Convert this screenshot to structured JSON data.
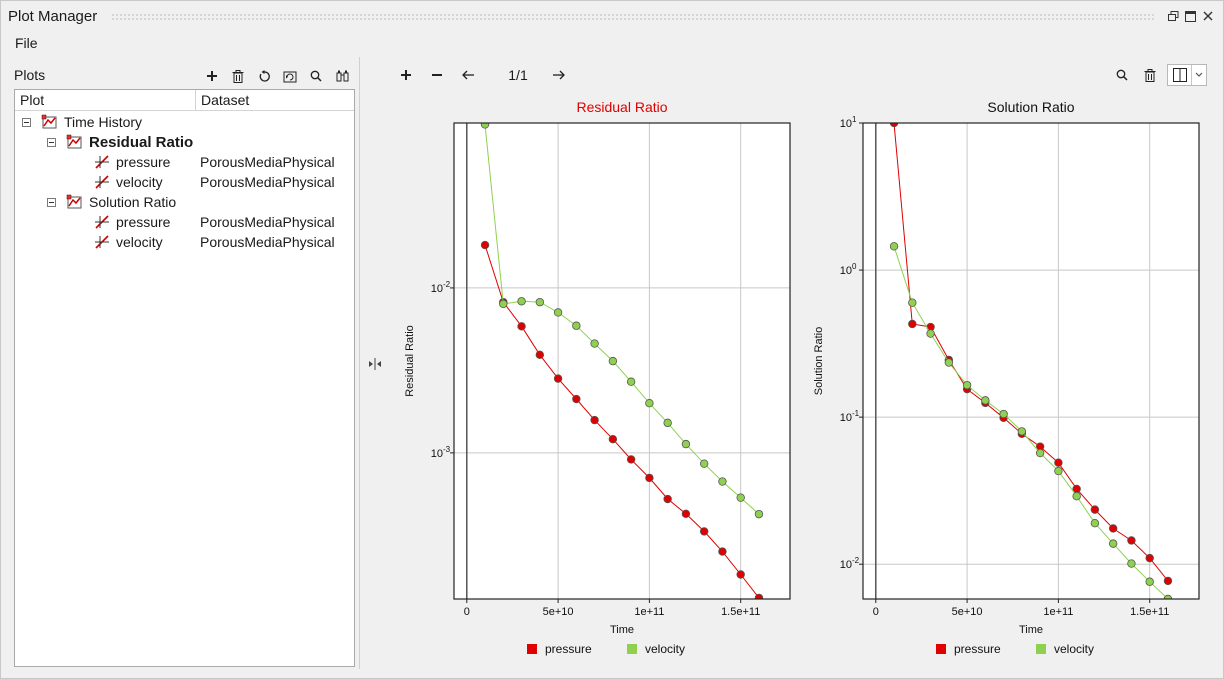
{
  "window": {
    "title": "Plot Manager"
  },
  "menu": {
    "file": "File"
  },
  "left": {
    "plots_label": "Plots",
    "tree_headers": {
      "plot": "Plot",
      "dataset": "Dataset"
    },
    "tree": {
      "root": "Time History",
      "groups": [
        {
          "label": "Residual Ratio",
          "bold": true,
          "items": [
            {
              "label": "pressure",
              "dataset": "PorousMediaPhysical"
            },
            {
              "label": "velocity",
              "dataset": "PorousMediaPhysical"
            }
          ]
        },
        {
          "label": "Solution Ratio",
          "bold": false,
          "items": [
            {
              "label": "pressure",
              "dataset": "PorousMediaPhysical"
            },
            {
              "label": "velocity",
              "dataset": "PorousMediaPhysical"
            }
          ]
        }
      ]
    }
  },
  "right": {
    "page": "1/1"
  },
  "colors": {
    "pressure": "#e00000",
    "velocity": "#90d050",
    "active_title": "#e00000"
  },
  "icons": [
    "plus-icon",
    "trash-icon",
    "undo-icon",
    "refresh-icon",
    "search-icon",
    "binoculars-icon",
    "minus-icon",
    "arrow-left-icon",
    "arrow-right-icon",
    "layout-icon",
    "chevron-down-icon",
    "restore-icon",
    "maximize-icon",
    "close-icon",
    "plot-icon",
    "curve-icon",
    "splitter-icon"
  ],
  "chart_data": [
    {
      "type": "line",
      "title": "Residual Ratio",
      "title_active": true,
      "xlabel": "Time",
      "ylabel": "Residual Ratio",
      "y_scale": "log",
      "xlim": [
        -7000000000,
        177000000000
      ],
      "ylim": [
        0.00013,
        0.1
      ],
      "x_ticks": [
        0,
        50000000000,
        100000000000,
        150000000000
      ],
      "x_tick_labels": [
        "0",
        "5e+10",
        "1e+11",
        "1.5e+11"
      ],
      "y_ticks": [
        0.001,
        0.01
      ],
      "y_tick_labels": [
        [
          "10",
          "-3"
        ],
        [
          "10",
          "-2"
        ]
      ],
      "grid": true,
      "legend": "bottom",
      "series": [
        {
          "name": "pressure",
          "color": "#e00000",
          "x": [
            10000000000,
            20000000000,
            30000000000,
            40000000000,
            50000000000,
            60000000000,
            70000000000,
            80000000000,
            90000000000,
            100000000000,
            110000000000,
            120000000000,
            130000000000,
            140000000000,
            150000000000,
            160000000000
          ],
          "y": [
            0.0182,
            0.0082,
            0.00585,
            0.00393,
            0.00282,
            0.00212,
            0.00158,
            0.00121,
            0.000912,
            0.000705,
            0.000525,
            0.000427,
            0.000334,
            0.000252,
            0.000183,
            0.000132
          ]
        },
        {
          "name": "velocity",
          "color": "#90d050",
          "x": [
            10000000000,
            20000000000,
            30000000000,
            40000000000,
            50000000000,
            60000000000,
            70000000000,
            80000000000,
            90000000000,
            100000000000,
            110000000000,
            120000000000,
            130000000000,
            140000000000,
            150000000000,
            160000000000
          ],
          "y": [
            0.098,
            0.008,
            0.0083,
            0.0082,
            0.0071,
            0.0059,
            0.0046,
            0.0036,
            0.0027,
            0.002,
            0.00152,
            0.00113,
            0.00086,
            0.00067,
            0.000535,
            0.000425
          ]
        }
      ]
    },
    {
      "type": "line",
      "title": "Solution Ratio",
      "title_active": false,
      "xlabel": "Time",
      "ylabel": "Solution Ratio",
      "y_scale": "log",
      "xlim": [
        -7000000000,
        177000000000
      ],
      "ylim": [
        0.0058,
        10
      ],
      "x_ticks": [
        0,
        50000000000,
        100000000000,
        150000000000
      ],
      "x_tick_labels": [
        "0",
        "5e+10",
        "1e+11",
        "1.5e+11"
      ],
      "y_ticks": [
        0.01,
        0.1,
        1,
        10
      ],
      "y_tick_labels": [
        [
          "10",
          "-2"
        ],
        [
          "10",
          "-1"
        ],
        [
          "10",
          "0"
        ],
        [
          "10",
          "1"
        ]
      ],
      "grid": true,
      "legend": "bottom",
      "series": [
        {
          "name": "pressure",
          "color": "#e00000",
          "x": [
            10000000000,
            20000000000,
            30000000000,
            40000000000,
            50000000000,
            60000000000,
            70000000000,
            80000000000,
            90000000000,
            100000000000,
            110000000000,
            120000000000,
            130000000000,
            140000000000,
            150000000000,
            160000000000
          ],
          "y": [
            10,
            0.43,
            0.41,
            0.245,
            0.155,
            0.125,
            0.099,
            0.077,
            0.063,
            0.049,
            0.0325,
            0.0235,
            0.0175,
            0.0145,
            0.011,
            0.0077
          ]
        },
        {
          "name": "velocity",
          "color": "#90d050",
          "x": [
            10000000000,
            20000000000,
            30000000000,
            40000000000,
            50000000000,
            60000000000,
            70000000000,
            80000000000,
            90000000000,
            100000000000,
            110000000000,
            120000000000,
            130000000000,
            140000000000,
            150000000000,
            160000000000
          ],
          "y": [
            1.45,
            0.6,
            0.37,
            0.235,
            0.165,
            0.13,
            0.105,
            0.08,
            0.057,
            0.043,
            0.029,
            0.019,
            0.0138,
            0.0101,
            0.0076,
            0.0058
          ]
        }
      ]
    }
  ]
}
